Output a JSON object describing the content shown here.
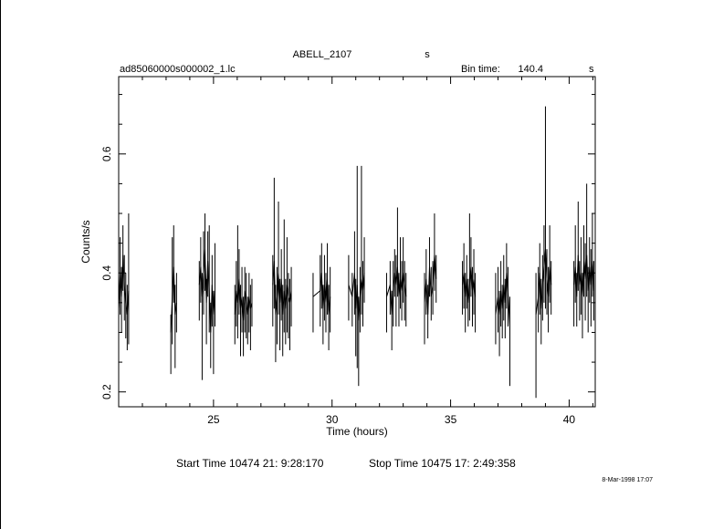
{
  "header": {
    "object": "ABELL_2107",
    "object_suffix": "s",
    "file": "ad85060000s000002_1.lc",
    "bin_label": "Bin time:",
    "bin_value": "140.4",
    "bin_unit": "s"
  },
  "footer": {
    "start": "Start Time 10474 21: 9:28:170",
    "stop": "Stop Time 10475 17: 2:49:358",
    "date": "8-Mar-1998 17:07"
  },
  "chart_data": {
    "type": "line",
    "title": "ABELL_2107",
    "xlabel": "Time (hours)",
    "ylabel": "Counts/s",
    "xlim": [
      21.0,
      41.1
    ],
    "ylim": [
      0.175,
      0.73
    ],
    "xticks": [
      25,
      30,
      35,
      40
    ],
    "xtick_labels": [
      "25",
      "30",
      "35",
      "40"
    ],
    "yticks": [
      0.2,
      0.4,
      0.6
    ],
    "ytick_labels": [
      "0.2",
      "0.4",
      "0.6"
    ],
    "grid": false,
    "segments": [
      {
        "x_start": 21.0,
        "x_end": 21.45,
        "points": [
          [
            21.0,
            0.34,
            0.38,
            0.3
          ],
          [
            21.06,
            0.4,
            0.46,
            0.33
          ],
          [
            21.12,
            0.36,
            0.41,
            0.3
          ],
          [
            21.18,
            0.43,
            0.48,
            0.37
          ],
          [
            21.24,
            0.38,
            0.43,
            0.32
          ],
          [
            21.3,
            0.35,
            0.4,
            0.29
          ],
          [
            21.36,
            0.33,
            0.38,
            0.27
          ],
          [
            21.42,
            0.37,
            0.5,
            0.28
          ]
        ]
      },
      {
        "x_start": 23.2,
        "x_end": 23.45,
        "points": [
          [
            23.2,
            0.3,
            0.33,
            0.23
          ],
          [
            23.26,
            0.36,
            0.46,
            0.28
          ],
          [
            23.32,
            0.41,
            0.48,
            0.35
          ],
          [
            23.38,
            0.33,
            0.38,
            0.24
          ],
          [
            23.44,
            0.35,
            0.4,
            0.3
          ]
        ]
      },
      {
        "x_start": 24.4,
        "x_end": 25.1,
        "points": [
          [
            24.4,
            0.38,
            0.42,
            0.32
          ],
          [
            24.46,
            0.41,
            0.46,
            0.35
          ],
          [
            24.52,
            0.36,
            0.4,
            0.22
          ],
          [
            24.58,
            0.4,
            0.47,
            0.33
          ],
          [
            24.64,
            0.44,
            0.5,
            0.37
          ],
          [
            24.7,
            0.35,
            0.39,
            0.28
          ],
          [
            24.76,
            0.42,
            0.47,
            0.36
          ],
          [
            24.82,
            0.37,
            0.48,
            0.3
          ],
          [
            24.88,
            0.3,
            0.35,
            0.24
          ],
          [
            24.94,
            0.38,
            0.43,
            0.31
          ],
          [
            25.0,
            0.33,
            0.37,
            0.23
          ],
          [
            25.06,
            0.37,
            0.45,
            0.31
          ]
        ]
      },
      {
        "x_start": 25.9,
        "x_end": 26.7,
        "points": [
          [
            25.9,
            0.33,
            0.38,
            0.28
          ],
          [
            25.96,
            0.37,
            0.42,
            0.31
          ],
          [
            26.02,
            0.35,
            0.48,
            0.29
          ],
          [
            26.08,
            0.39,
            0.44,
            0.33
          ],
          [
            26.14,
            0.34,
            0.38,
            0.26
          ],
          [
            26.2,
            0.36,
            0.41,
            0.3
          ],
          [
            26.26,
            0.32,
            0.36,
            0.26
          ],
          [
            26.32,
            0.37,
            0.41,
            0.3
          ],
          [
            26.38,
            0.35,
            0.4,
            0.29
          ],
          [
            26.44,
            0.33,
            0.36,
            0.28
          ],
          [
            26.5,
            0.36,
            0.4,
            0.3
          ],
          [
            26.56,
            0.34,
            0.38,
            0.27
          ],
          [
            26.62,
            0.35,
            0.39,
            0.31
          ]
        ]
      },
      {
        "x_start": 27.5,
        "x_end": 28.3,
        "points": [
          [
            27.5,
            0.38,
            0.43,
            0.31
          ],
          [
            27.56,
            0.42,
            0.56,
            0.34
          ],
          [
            27.62,
            0.33,
            0.38,
            0.25
          ],
          [
            27.68,
            0.36,
            0.41,
            0.28
          ],
          [
            27.74,
            0.4,
            0.52,
            0.33
          ],
          [
            27.8,
            0.35,
            0.39,
            0.27
          ],
          [
            27.86,
            0.39,
            0.44,
            0.32
          ],
          [
            27.92,
            0.33,
            0.38,
            0.26
          ],
          [
            27.98,
            0.37,
            0.49,
            0.3
          ],
          [
            28.04,
            0.34,
            0.39,
            0.28
          ],
          [
            28.1,
            0.38,
            0.46,
            0.3
          ],
          [
            28.16,
            0.36,
            0.4,
            0.29
          ],
          [
            28.22,
            0.35,
            0.39,
            0.27
          ],
          [
            28.28,
            0.37,
            0.41,
            0.31
          ]
        ]
      },
      {
        "x_start": 29.2,
        "x_end": 30.0,
        "points": [
          [
            29.2,
            0.36,
            0.4,
            0.3
          ],
          [
            29.5,
            0.37,
            0.43,
            0.31
          ],
          [
            29.56,
            0.4,
            0.45,
            0.34
          ],
          [
            29.62,
            0.34,
            0.38,
            0.28
          ],
          [
            29.68,
            0.38,
            0.43,
            0.32
          ],
          [
            29.74,
            0.35,
            0.4,
            0.3
          ],
          [
            29.8,
            0.39,
            0.45,
            0.33
          ],
          [
            29.86,
            0.33,
            0.38,
            0.27
          ],
          [
            29.92,
            0.36,
            0.41,
            0.3
          ]
        ]
      },
      {
        "x_start": 30.7,
        "x_end": 31.4,
        "points": [
          [
            30.7,
            0.38,
            0.43,
            0.32
          ],
          [
            30.85,
            0.36,
            0.4,
            0.31
          ],
          [
            30.95,
            0.4,
            0.47,
            0.33
          ],
          [
            31.0,
            0.34,
            0.39,
            0.26
          ],
          [
            31.06,
            0.38,
            0.58,
            0.24
          ],
          [
            31.12,
            0.32,
            0.36,
            0.21
          ],
          [
            31.18,
            0.36,
            0.41,
            0.3
          ],
          [
            31.24,
            0.39,
            0.58,
            0.33
          ],
          [
            31.3,
            0.37,
            0.42,
            0.31
          ],
          [
            31.36,
            0.4,
            0.46,
            0.35
          ]
        ]
      },
      {
        "x_start": 32.3,
        "x_end": 33.2,
        "points": [
          [
            32.3,
            0.36,
            0.4,
            0.3
          ],
          [
            32.45,
            0.38,
            0.42,
            0.33
          ],
          [
            32.52,
            0.33,
            0.37,
            0.27
          ],
          [
            32.58,
            0.37,
            0.42,
            0.31
          ],
          [
            32.64,
            0.4,
            0.44,
            0.36
          ],
          [
            32.7,
            0.38,
            0.43,
            0.31
          ],
          [
            32.76,
            0.41,
            0.51,
            0.36
          ],
          [
            32.82,
            0.36,
            0.4,
            0.31
          ],
          [
            32.88,
            0.39,
            0.46,
            0.34
          ],
          [
            32.94,
            0.37,
            0.42,
            0.32
          ],
          [
            33.0,
            0.4,
            0.46,
            0.35
          ],
          [
            33.06,
            0.38,
            0.42,
            0.32
          ],
          [
            33.12,
            0.36,
            0.4,
            0.31
          ]
        ]
      },
      {
        "x_start": 33.9,
        "x_end": 34.6,
        "points": [
          [
            33.9,
            0.35,
            0.4,
            0.28
          ],
          [
            33.97,
            0.39,
            0.44,
            0.33
          ],
          [
            34.04,
            0.33,
            0.38,
            0.29
          ],
          [
            34.11,
            0.41,
            0.46,
            0.36
          ],
          [
            34.18,
            0.36,
            0.41,
            0.32
          ],
          [
            34.25,
            0.38,
            0.42,
            0.33
          ],
          [
            34.32,
            0.43,
            0.5,
            0.37
          ],
          [
            34.39,
            0.39,
            0.43,
            0.35
          ]
        ]
      },
      {
        "x_start": 35.5,
        "x_end": 36.1,
        "points": [
          [
            35.5,
            0.38,
            0.42,
            0.33
          ],
          [
            35.56,
            0.4,
            0.45,
            0.34
          ],
          [
            35.62,
            0.36,
            0.4,
            0.3
          ],
          [
            35.68,
            0.39,
            0.43,
            0.34
          ],
          [
            35.74,
            0.35,
            0.39,
            0.31
          ],
          [
            35.8,
            0.38,
            0.5,
            0.32
          ],
          [
            35.86,
            0.41,
            0.46,
            0.36
          ],
          [
            35.92,
            0.37,
            0.41,
            0.31
          ],
          [
            35.98,
            0.39,
            0.44,
            0.33
          ],
          [
            36.04,
            0.36,
            0.4,
            0.3
          ]
        ]
      },
      {
        "x_start": 36.9,
        "x_end": 37.6,
        "points": [
          [
            36.9,
            0.33,
            0.4,
            0.28
          ],
          [
            37.0,
            0.36,
            0.41,
            0.3
          ],
          [
            37.06,
            0.33,
            0.37,
            0.26
          ],
          [
            37.12,
            0.37,
            0.42,
            0.31
          ],
          [
            37.18,
            0.34,
            0.38,
            0.29
          ],
          [
            37.24,
            0.38,
            0.43,
            0.32
          ],
          [
            37.3,
            0.35,
            0.39,
            0.29
          ],
          [
            37.36,
            0.4,
            0.45,
            0.34
          ],
          [
            37.42,
            0.37,
            0.41,
            0.31
          ],
          [
            37.5,
            0.31,
            0.36,
            0.21
          ]
        ]
      },
      {
        "x_start": 38.6,
        "x_end": 39.3,
        "points": [
          [
            38.6,
            0.33,
            0.4,
            0.19
          ],
          [
            38.7,
            0.36,
            0.41,
            0.3
          ],
          [
            38.76,
            0.4,
            0.45,
            0.33
          ],
          [
            38.82,
            0.34,
            0.39,
            0.28
          ],
          [
            38.88,
            0.38,
            0.43,
            0.32
          ],
          [
            38.94,
            0.41,
            0.48,
            0.35
          ],
          [
            39.0,
            0.44,
            0.68,
            0.34
          ],
          [
            39.06,
            0.39,
            0.44,
            0.33
          ],
          [
            39.12,
            0.36,
            0.41,
            0.3
          ],
          [
            39.18,
            0.41,
            0.48,
            0.35
          ],
          [
            39.24,
            0.38,
            0.42,
            0.33
          ]
        ]
      },
      {
        "x_start": 40.2,
        "x_end": 41.1,
        "points": [
          [
            40.2,
            0.38,
            0.42,
            0.31
          ],
          [
            40.26,
            0.41,
            0.48,
            0.35
          ],
          [
            40.32,
            0.36,
            0.4,
            0.31
          ],
          [
            40.38,
            0.43,
            0.52,
            0.37
          ],
          [
            40.44,
            0.38,
            0.42,
            0.32
          ],
          [
            40.5,
            0.4,
            0.46,
            0.33
          ],
          [
            40.56,
            0.36,
            0.4,
            0.29
          ],
          [
            40.62,
            0.42,
            0.48,
            0.36
          ],
          [
            40.68,
            0.39,
            0.45,
            0.32
          ],
          [
            40.74,
            0.43,
            0.55,
            0.36
          ],
          [
            40.8,
            0.37,
            0.41,
            0.3
          ],
          [
            40.86,
            0.41,
            0.46,
            0.35
          ],
          [
            40.92,
            0.38,
            0.44,
            0.31
          ],
          [
            40.98,
            0.42,
            0.5,
            0.36
          ],
          [
            41.04,
            0.37,
            0.42,
            0.32
          ]
        ]
      }
    ]
  }
}
